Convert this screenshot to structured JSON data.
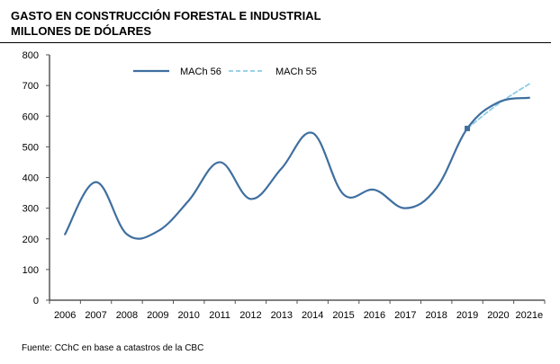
{
  "header": {
    "title_line1": "GASTO EN CONSTRUCCIÓN FORESTAL E INDUSTRIAL",
    "title_line2": "MILLONES DE DÓLARES"
  },
  "footer": {
    "source": "Fuente: CChC en base a catastros de la CBC"
  },
  "colors": {
    "series_solid": "#3f6f9f",
    "series_dashed": "#8ccbe8",
    "axis": "#000000",
    "tick_mark": "#555555"
  },
  "chart_data": {
    "type": "line",
    "categories": [
      "2006",
      "2007",
      "2008",
      "2009",
      "2010",
      "2011",
      "2012",
      "2013",
      "2014",
      "2015",
      "2016",
      "2017",
      "2018",
      "2019",
      "2020",
      "2021e"
    ],
    "ylim": [
      0,
      800
    ],
    "yticks": [
      0,
      100,
      200,
      300,
      400,
      500,
      600,
      700,
      800
    ],
    "grid": false,
    "legend_position": "top",
    "series": [
      {
        "name": "MACh 56",
        "style": "solid",
        "values": [
          215,
          385,
          215,
          225,
          325,
          450,
          330,
          430,
          545,
          345,
          360,
          300,
          365,
          560,
          645,
          660
        ]
      },
      {
        "name": "MACh 55",
        "style": "dashed",
        "values": [
          null,
          null,
          null,
          null,
          null,
          null,
          null,
          null,
          null,
          null,
          null,
          null,
          null,
          560,
          640,
          705
        ]
      }
    ],
    "marker": {
      "category": "2019",
      "value": 560
    }
  }
}
